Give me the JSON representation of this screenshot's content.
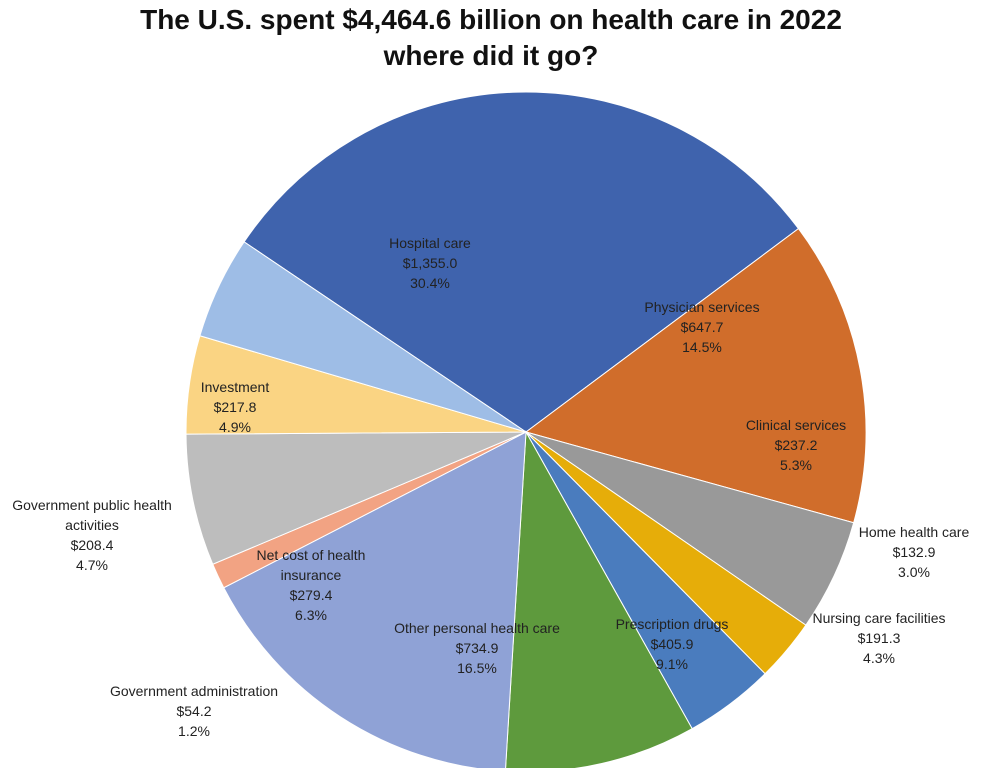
{
  "chart_data": {
    "type": "pie",
    "title_line1": "The U.S. spent $4,464.6 billion on health care in 2022",
    "title_line2": "where did it go?",
    "total": "$4,464.6 billion",
    "slices": [
      {
        "name": "Hospital care",
        "label_lines": [
          "Hospital care"
        ],
        "value": 1355.0,
        "value_label": "$1,355.0",
        "percent": 30.4,
        "percent_label": "30.4%",
        "color": "#3F63AD"
      },
      {
        "name": "Physician services",
        "label_lines": [
          "Physician services"
        ],
        "value": 647.7,
        "value_label": "$647.7",
        "percent": 14.5,
        "percent_label": "14.5%",
        "color": "#D06D2B"
      },
      {
        "name": "Clinical services",
        "label_lines": [
          "Clinical services"
        ],
        "value": 237.2,
        "value_label": "$237.2",
        "percent": 5.3,
        "percent_label": "5.3%",
        "color": "#999999"
      },
      {
        "name": "Home health care",
        "label_lines": [
          "Home health care"
        ],
        "value": 132.9,
        "value_label": "$132.9",
        "percent": 3.0,
        "percent_label": "3.0%",
        "color": "#E6AD09"
      },
      {
        "name": "Nursing care facilities",
        "label_lines": [
          "Nursing care facilities"
        ],
        "value": 191.3,
        "value_label": "$191.3",
        "percent": 4.3,
        "percent_label": "4.3%",
        "color": "#4A7CBE"
      },
      {
        "name": "Prescription drugs",
        "label_lines": [
          "Prescription drugs"
        ],
        "value": 405.9,
        "value_label": "$405.9",
        "percent": 9.1,
        "percent_label": "9.1%",
        "color": "#5E9A3D"
      },
      {
        "name": "Other personal health care",
        "label_lines": [
          "Other personal health care"
        ],
        "value": 734.9,
        "value_label": "$734.9",
        "percent": 16.5,
        "percent_label": "16.5%",
        "color": "#8FA2D6"
      },
      {
        "name": "Government administration",
        "label_lines": [
          "Government administration"
        ],
        "value": 54.2,
        "value_label": "$54.2",
        "percent": 1.2,
        "percent_label": "1.2%",
        "color": "#F2A383"
      },
      {
        "name": "Net cost of health insurance",
        "label_lines": [
          "Net cost of health",
          "insurance"
        ],
        "value": 279.4,
        "value_label": "$279.4",
        "percent": 6.3,
        "percent_label": "6.3%",
        "color": "#BDBDBD"
      },
      {
        "name": "Government public health activities",
        "label_lines": [
          "Government public health",
          "activities"
        ],
        "value": 208.4,
        "value_label": "$208.4",
        "percent": 4.7,
        "percent_label": "4.7%",
        "color": "#FAD483"
      },
      {
        "name": "Investment",
        "label_lines": [
          "Investment"
        ],
        "value": 217.8,
        "value_label": "$217.8",
        "percent": 4.9,
        "percent_label": "4.9%",
        "color": "#9EBDE6"
      }
    ]
  }
}
